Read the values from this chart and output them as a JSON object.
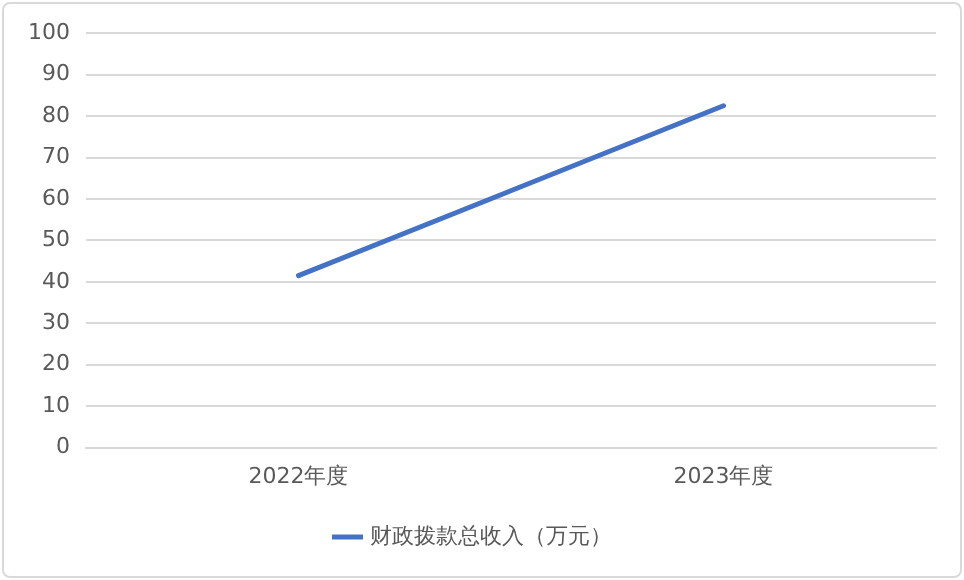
{
  "chart_data": {
    "type": "line",
    "categories": [
      "2022年度",
      "2023年度"
    ],
    "series": [
      {
        "name": "财政拨款总收入（万元）",
        "color": "#4472c4",
        "values": [
          41.5,
          82.5
        ]
      }
    ],
    "ylim": [
      0,
      100
    ],
    "yticks": [
      0,
      10,
      20,
      30,
      40,
      50,
      60,
      70,
      80,
      90,
      100
    ],
    "grid": "y",
    "legend": "bottom",
    "marker": "none",
    "line_style": "solid"
  }
}
